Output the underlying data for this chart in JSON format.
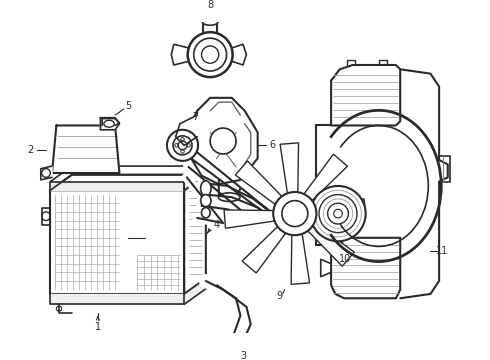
{
  "bg_color": "#ffffff",
  "lc": "#2a2a2a",
  "figsize": [
    4.9,
    3.6
  ],
  "dpi": 100
}
